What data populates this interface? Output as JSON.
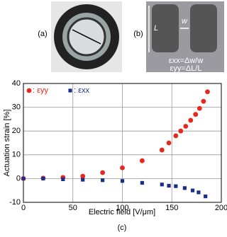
{
  "panels": {
    "a": "(a)",
    "b": "(b)",
    "c": "(c)"
  },
  "photo_b": {
    "length_label": "L",
    "width_label": "w",
    "strain_xx": "εxx=Δw/w",
    "strain_yy": "εyy=ΔL/L"
  },
  "chart_data": {
    "type": "scatter",
    "xlabel": "Electric field [V/μm]",
    "ylabel": "Actuation strain [%]",
    "xlim": [
      0,
      200
    ],
    "ylim": [
      -10,
      40
    ],
    "xticks": [
      0,
      50,
      100,
      150,
      200
    ],
    "yticks": [
      -10,
      0,
      10,
      20,
      30,
      40
    ],
    "grid": true,
    "legend": "upper left",
    "series": [
      {
        "name": ": εyy",
        "color": "#e8281e",
        "marker": "circle",
        "x": [
          0,
          20,
          40,
          60,
          80,
          100,
          120,
          140,
          147,
          154,
          159,
          164,
          169,
          174,
          178,
          182,
          186
        ],
        "values": [
          0,
          0.2,
          0.5,
          1,
          2.5,
          4.5,
          7.5,
          12,
          15,
          18,
          20,
          22,
          24.5,
          27,
          29.5,
          32.5,
          36.5
        ]
      },
      {
        "name": ": εxx",
        "color": "#1a2f8a",
        "marker": "square",
        "x": [
          0,
          20,
          40,
          60,
          80,
          100,
          120,
          140,
          147,
          154,
          163,
          171,
          177,
          184
        ],
        "values": [
          0,
          0,
          -0.3,
          -0.5,
          -0.7,
          -1.0,
          -1.8,
          -2.5,
          -3.0,
          -3.2,
          -4.0,
          -5.0,
          -5.8,
          -7.5
        ]
      }
    ]
  }
}
